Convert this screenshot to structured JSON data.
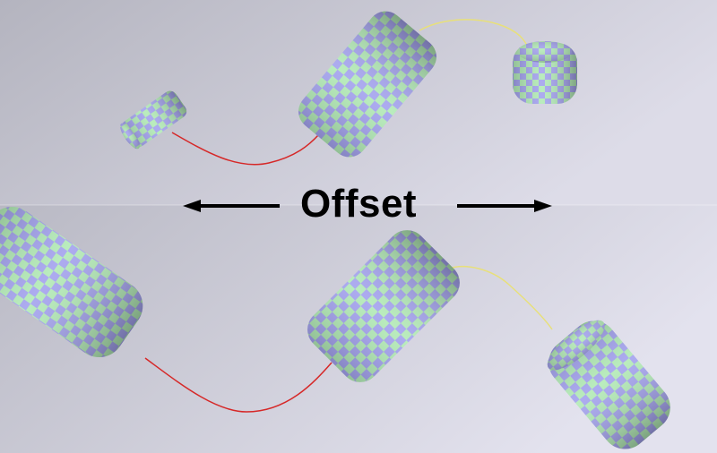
{
  "caption": {
    "label": "Offset"
  },
  "colors": {
    "panel_top": "#b9b9c4",
    "panel_bottom": "#e0dfea",
    "checker_light": "#b2eab6",
    "checker_dark": "#a3a2ee",
    "curve_red": "#d62828",
    "curve_yellow": "#e8e07a",
    "arrow": "#000000"
  },
  "panels": [
    {
      "name": "top-panel",
      "objects": [
        "cylinder-left",
        "cylinder-center",
        "cylinder-right"
      ]
    },
    {
      "name": "bottom-panel",
      "objects": [
        "cylinder-left",
        "cylinder-center",
        "cylinder-right"
      ]
    }
  ]
}
